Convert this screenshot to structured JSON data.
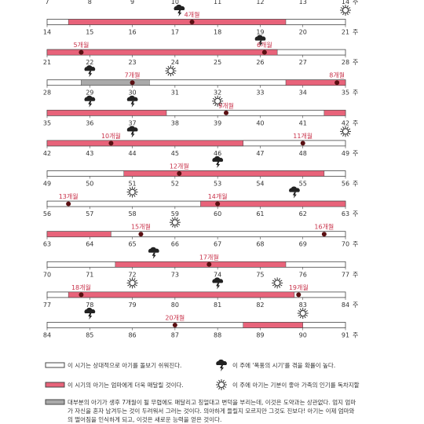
{
  "rows": [
    {
      "weeks": [
        7,
        8,
        9,
        10,
        11,
        12,
        13,
        14
      ],
      "unit": "주",
      "segments": [],
      "events": [
        {
          "icon": "sun",
          "week": 14
        }
      ],
      "months": []
    },
    {
      "weeks": [
        14,
        15,
        16,
        17,
        18,
        19,
        20,
        21
      ],
      "unit": "주",
      "segments": [
        {
          "type": "pink",
          "start": 14.5,
          "end": 19.6
        }
      ],
      "events": [
        {
          "icon": "storm",
          "week": 17.1
        },
        {
          "icon": "sun",
          "week": 21
        }
      ],
      "months": [
        {
          "label": "4개월",
          "week": 17.4
        }
      ]
    },
    {
      "weeks": [
        21,
        22,
        23,
        24,
        25,
        26,
        27,
        28
      ],
      "unit": "주",
      "segments": [
        {
          "type": "pink",
          "start": 21,
          "end": 26.4
        }
      ],
      "events": [
        {
          "icon": "storm",
          "week": 26
        }
      ],
      "months": [
        {
          "label": "5개월",
          "week": 21.8
        },
        {
          "label": "6개월",
          "week": 26.1
        }
      ]
    },
    {
      "weeks": [
        28,
        29,
        30,
        31,
        32,
        33,
        34,
        35
      ],
      "unit": "주",
      "segments": [
        {
          "type": "gray",
          "start": 28.8,
          "end": 30.4
        },
        {
          "type": "pink",
          "start": 33.6,
          "end": 35
        }
      ],
      "events": [
        {
          "icon": "storm",
          "week": 29
        },
        {
          "icon": "sun",
          "week": 30.9
        }
      ],
      "months": [
        {
          "label": "7개월",
          "week": 30
        },
        {
          "label": "8개월",
          "week": 34.8
        }
      ]
    },
    {
      "weeks": [
        35,
        36,
        37,
        38,
        39,
        40,
        41,
        42
      ],
      "unit": "주",
      "segments": [
        {
          "type": "pink",
          "start": 35,
          "end": 37.8
        },
        {
          "type": "pink",
          "start": 41.5,
          "end": 42
        }
      ],
      "events": [
        {
          "icon": "storm",
          "week": 36
        },
        {
          "icon": "storm",
          "week": 37
        },
        {
          "icon": "sun",
          "week": 39
        }
      ],
      "months": [
        {
          "label": "9개월",
          "week": 39.2
        }
      ]
    },
    {
      "weeks": [
        42,
        43,
        44,
        45,
        46,
        47,
        48,
        49
      ],
      "unit": "주",
      "segments": [
        {
          "type": "pink",
          "start": 42,
          "end": 46.6
        }
      ],
      "events": [
        {
          "icon": "storm",
          "week": 44
        },
        {
          "icon": "sun",
          "week": 49
        }
      ],
      "months": [
        {
          "label": "10개월",
          "week": 43.5
        },
        {
          "label": "11개월",
          "week": 48
        }
      ]
    },
    {
      "weeks": [
        49,
        50,
        51,
        52,
        53,
        54,
        55,
        56
      ],
      "unit": "주",
      "segments": [
        {
          "type": "pink",
          "start": 50.8,
          "end": 55.5
        }
      ],
      "events": [
        {
          "icon": "storm",
          "week": 53
        }
      ],
      "months": [
        {
          "label": "12개월",
          "week": 52.1
        }
      ]
    },
    {
      "weeks": [
        56,
        57,
        58,
        59,
        60,
        61,
        62,
        63
      ],
      "unit": "주",
      "segments": [
        {
          "type": "pink",
          "start": 59.6,
          "end": 63
        }
      ],
      "events": [
        {
          "icon": "sun",
          "week": 58
        },
        {
          "icon": "storm",
          "week": 61.8
        }
      ],
      "months": [
        {
          "label": "13개월",
          "week": 56.5
        },
        {
          "label": "14개월",
          "week": 60
        }
      ]
    },
    {
      "weeks": [
        63,
        64,
        65,
        66,
        67,
        68,
        69,
        70
      ],
      "unit": "주",
      "segments": [
        {
          "type": "pink",
          "start": 63,
          "end": 64.5
        }
      ],
      "events": [
        {
          "icon": "sun",
          "week": 66
        }
      ],
      "months": [
        {
          "label": "15개월",
          "week": 65.2
        },
        {
          "label": "16개월",
          "week": 69.5
        }
      ]
    },
    {
      "weeks": [
        70,
        71,
        72,
        73,
        74,
        75,
        76,
        77
      ],
      "unit": "주",
      "segments": [
        {
          "type": "pink",
          "start": 71.6,
          "end": 75.6
        }
      ],
      "events": [
        {
          "icon": "storm",
          "week": 72.5
        }
      ],
      "months": [
        {
          "label": "17개월",
          "week": 73.8
        }
      ]
    },
    {
      "weeks": [
        77,
        78,
        79,
        80,
        81,
        82,
        83,
        84
      ],
      "unit": "주",
      "segments": [
        {
          "type": "pink",
          "start": 77.5,
          "end": 82.8
        }
      ],
      "events": [
        {
          "icon": "sun",
          "week": 79
        },
        {
          "icon": "storm",
          "week": 81
        },
        {
          "icon": "sun",
          "week": 82.4
        }
      ],
      "months": [
        {
          "label": "18개월",
          "week": 77.8
        },
        {
          "label": "19개월",
          "week": 82.9
        }
      ]
    },
    {
      "weeks": [
        84,
        85,
        86,
        87,
        88,
        89,
        90,
        91
      ],
      "unit": "주",
      "segments": [
        {
          "type": "pink",
          "start": 88.6,
          "end": 90
        }
      ],
      "events": [
        {
          "icon": "storm",
          "week": 85
        },
        {
          "icon": "sun",
          "week": 90
        }
      ],
      "months": [
        {
          "label": "20개월",
          "week": 87
        }
      ]
    }
  ],
  "legend": [
    {
      "text": "이 시기는 상대적으로 아기를 돌보기 쉬워진다."
    },
    {
      "text": "이 주에 '폭풍의 시기'를 겪을 확률이 높다."
    },
    {
      "text": "이 시기의 아기는 엄마에게 더욱 매달릴 것이다."
    },
    {
      "text": "이 주에 아기는 기분이 좋아 가족의 인기를 독차지할"
    },
    {
      "text": "대부분의 아기가 생후 7개월이 될 무렵에도 매달리고 칭얼대고 변덕을 부리는데, 이것은 도약과는 상관없다. 엄지 엄마가 자신을 혼자 남겨두는 것이 두려워서 그러는 것이다. 의아하게 들릴지 모르지만 그것도 진보다! 아기는 이제 엄마와의 떨어짐을 인식하게 되고, 이것은 새로운 능력을 얻은 것이다."
    }
  ]
}
